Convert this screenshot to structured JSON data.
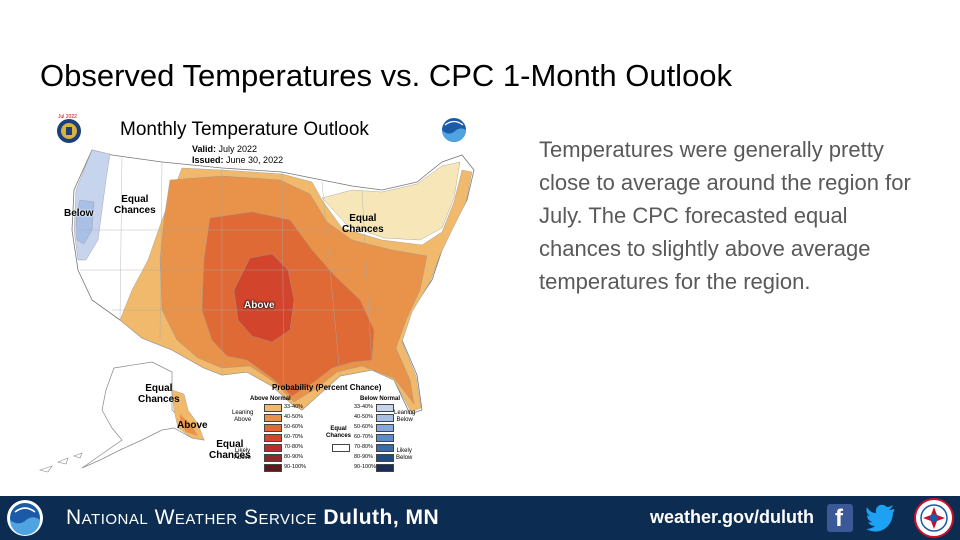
{
  "slide": {
    "title": "Observed Temperatures vs. CPC 1-Month Outlook",
    "commentary": "Temperatures were generally pretty close to average around the region for July. The CPC forecasted equal chances to slightly above average temperatures for the region."
  },
  "map": {
    "title": "Monthly Temperature Outlook",
    "badge_date": "Jul 2022",
    "valid_label": "Valid:",
    "valid_value": "July 2022",
    "issued_label": "Issued:",
    "issued_value": "June 30, 2022",
    "region_labels": {
      "below_west": "Below",
      "equal_northwest_1": "Equal",
      "equal_northwest_2": "Chances",
      "equal_northeast_1": "Equal",
      "equal_northeast_2": "Chances",
      "above_central": "Above",
      "equal_alaska_1": "Equal",
      "equal_alaska_2": "Chances",
      "above_alaska": "Above",
      "equal_aleutians_1": "Equal",
      "equal_aleutians_2": "Chances"
    },
    "legend": {
      "title": "Probability (Percent Chance)",
      "above_head": "Above Normal",
      "below_head": "Below Normal",
      "equal_1": "Equal",
      "equal_2": "Chances",
      "leaning_above_1": "Leaning",
      "leaning_above_2": "Above",
      "likely_above_1": "Likely",
      "likely_above_2": "Above",
      "leaning_below_1": "Leaning",
      "leaning_below_2": "Below",
      "likely_below_1": "Likely",
      "likely_below_2": "Below",
      "above_bins": [
        "33-40%",
        "40-50%",
        "50-60%",
        "60-70%",
        "70-80%",
        "80-90%",
        "90-100%"
      ],
      "below_bins": [
        "33-40%",
        "40-50%",
        "50-60%",
        "60-70%",
        "70-80%",
        "80-90%",
        "90-100%"
      ],
      "above_colors": [
        "#f0b96b",
        "#e8924a",
        "#e06a35",
        "#d2452c",
        "#b82b2f",
        "#8e2a2e",
        "#5a1a1a"
      ],
      "below_colors": [
        "#c6d4ee",
        "#a9c0e6",
        "#84a9dc",
        "#5a8cc8",
        "#3a6aa8",
        "#234b86",
        "#1a2d5a"
      ]
    }
  },
  "footer": {
    "org_prefix": "National Weather Service",
    "office": "Duluth, MN",
    "url": "weather.gov/duluth",
    "facebook_glyph": "f"
  }
}
